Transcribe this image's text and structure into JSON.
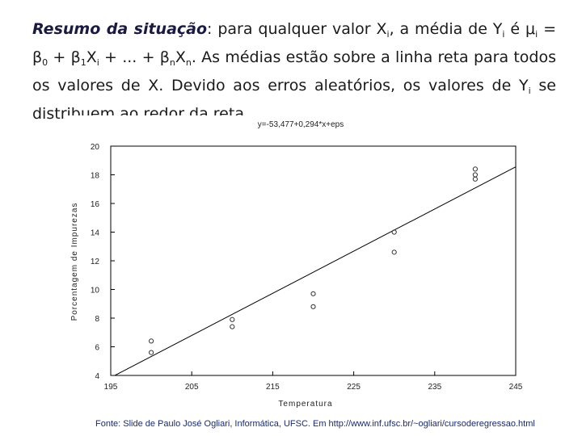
{
  "slide": {
    "paragraph": [
      {
        "text": "Resumo da situação",
        "style": "bold-italic"
      },
      {
        "text": ": para qualquer valor X",
        "style": "normal"
      },
      {
        "text": "i",
        "style": "sub"
      },
      {
        "text": ", a média de Y",
        "style": "normal"
      },
      {
        "text": "i",
        "style": "sub"
      },
      {
        "text": " é ",
        "style": "normal"
      },
      {
        "text": "μ",
        "style": "normal"
      },
      {
        "text": "i",
        "style": "sub"
      },
      {
        "text": " = ",
        "style": "normal"
      },
      {
        "text": "β",
        "style": "normal"
      },
      {
        "text": "0",
        "style": "sub"
      },
      {
        "text": " + ",
        "style": "normal"
      },
      {
        "text": "β",
        "style": "normal"
      },
      {
        "text": "1",
        "style": "sub"
      },
      {
        "text": "X",
        "style": "normal"
      },
      {
        "text": "i",
        "style": "sub"
      },
      {
        "text": " + ... + ",
        "style": "normal"
      },
      {
        "text": "β",
        "style": "normal"
      },
      {
        "text": "n",
        "style": "sub"
      },
      {
        "text": "X",
        "style": "normal"
      },
      {
        "text": "n",
        "style": "sub"
      },
      {
        "text": ". As médias estão sobre a linha reta para todos os valores de X. Devido aos erros aleatórios, os valores de Y",
        "style": "normal"
      },
      {
        "text": "i",
        "style": "sub"
      },
      {
        "text": " se distribuem ao redor da reta.",
        "style": "normal"
      }
    ],
    "source": "Fonte: Slide de Paulo José Ogliari, Informática, UFSC. Em http://www.inf.ufsc.br/~ogliari/cursoderegressao.html"
  },
  "chart_data": {
    "type": "scatter",
    "title": "y=-53,477+0,294*x+eps",
    "x_label": "Temperatura",
    "y_label": "Porcentagem de Impurezas",
    "x": [
      200,
      200,
      210,
      210,
      220,
      220,
      230,
      230,
      240,
      240,
      240
    ],
    "values": [
      6.4,
      5.6,
      7.9,
      7.4,
      9.7,
      8.8,
      14.0,
      12.6,
      18.4,
      18.0,
      17.7
    ],
    "color": "#333333",
    "fit": {
      "intercept": -53.477,
      "slope": 0.294,
      "color": "#000000"
    },
    "xlim": [
      195,
      245
    ],
    "xticks": [
      195,
      205,
      215,
      225,
      235,
      245
    ],
    "ylim": [
      4,
      20
    ],
    "yticks": [
      4,
      6,
      8,
      10,
      12,
      14,
      16,
      18,
      20
    ]
  }
}
